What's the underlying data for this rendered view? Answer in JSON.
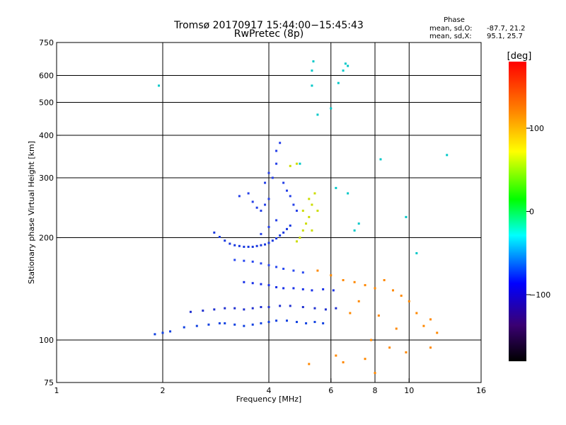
{
  "chart_data": {
    "type": "scatter",
    "title": "Tromsø 20170917 15:44:00−15:45:43",
    "subtitle": "RwPretec (8p)",
    "xlabel": "Frequency [MHz]",
    "ylabel": "Stationary phase Virtual Height [km]",
    "xscale": "log",
    "yscale": "log",
    "xlim": [
      1,
      16
    ],
    "ylim": [
      75,
      750
    ],
    "xticks": [
      1,
      2,
      4,
      6,
      8,
      10,
      16
    ],
    "xtick_labels": [
      "1",
      "2",
      "4",
      "6",
      "8",
      "10",
      "16"
    ],
    "yticks": [
      75,
      100,
      200,
      300,
      400,
      500,
      600,
      750
    ],
    "ytick_labels": [
      "75",
      "100",
      "200",
      "300",
      "400",
      "500",
      "600",
      "750"
    ],
    "grid": true,
    "phase_stats": {
      "title": "Phase",
      "o_label": "mean, sd,O:",
      "o_values": "-87.7, 21.2",
      "x_label": "mean, sd,X:",
      "x_values": "95.1, 25.7"
    },
    "colorbar": {
      "label": "[deg]",
      "range": [
        -180,
        180
      ],
      "ticks": [
        100,
        0,
        -100
      ],
      "tick_labels": [
        "100",
        "0",
        "−100"
      ],
      "colormap": [
        "#000000",
        "#3a0072",
        "#0000ff",
        "#00ffff",
        "#00ff00",
        "#ffff00",
        "#ff8000",
        "#ff0000"
      ]
    },
    "series": [
      {
        "trace": "blue low band",
        "color": "#1040e0",
        "points": [
          [
            1.9,
            104
          ],
          [
            2.0,
            105
          ],
          [
            2.1,
            106
          ],
          [
            2.3,
            109
          ],
          [
            2.5,
            110
          ],
          [
            2.7,
            111
          ],
          [
            2.9,
            112
          ],
          [
            3.0,
            112
          ],
          [
            3.2,
            111
          ],
          [
            3.4,
            110
          ],
          [
            3.6,
            111
          ],
          [
            3.8,
            112
          ],
          [
            4.0,
            113
          ],
          [
            4.2,
            114
          ],
          [
            4.5,
            114
          ],
          [
            4.8,
            113
          ],
          [
            5.1,
            112
          ],
          [
            5.4,
            113
          ],
          [
            5.7,
            112
          ]
        ]
      },
      {
        "trace": "blue middle band",
        "color": "#2030d0",
        "points": [
          [
            2.4,
            121
          ],
          [
            2.6,
            122
          ],
          [
            2.8,
            123
          ],
          [
            3.0,
            124
          ],
          [
            3.2,
            124
          ],
          [
            3.4,
            123
          ],
          [
            3.6,
            124
          ],
          [
            3.8,
            125
          ],
          [
            4.0,
            125
          ],
          [
            4.3,
            126
          ],
          [
            4.6,
            126
          ],
          [
            5.0,
            125
          ],
          [
            5.4,
            124
          ],
          [
            5.8,
            123
          ],
          [
            6.2,
            124
          ]
        ]
      },
      {
        "trace": "blue 150 km band",
        "color": "#1830e8",
        "points": [
          [
            3.4,
            148
          ],
          [
            3.6,
            147
          ],
          [
            3.8,
            146
          ],
          [
            4.0,
            145
          ],
          [
            4.2,
            143
          ],
          [
            4.4,
            142
          ],
          [
            4.7,
            142
          ],
          [
            5.0,
            141
          ],
          [
            5.3,
            140
          ],
          [
            5.7,
            141
          ],
          [
            6.1,
            140
          ]
        ]
      },
      {
        "trace": "blue 170 km band",
        "color": "#2848f0",
        "points": [
          [
            3.2,
            172
          ],
          [
            3.4,
            171
          ],
          [
            3.6,
            170
          ],
          [
            3.8,
            168
          ],
          [
            4.0,
            166
          ],
          [
            4.2,
            164
          ],
          [
            4.4,
            162
          ],
          [
            4.7,
            160
          ],
          [
            5.0,
            158
          ]
        ]
      },
      {
        "trace": "blue F cusp",
        "color": "#1838e0",
        "points": [
          [
            2.8,
            207
          ],
          [
            2.9,
            201
          ],
          [
            3.0,
            196
          ],
          [
            3.1,
            192
          ],
          [
            3.2,
            190
          ],
          [
            3.3,
            189
          ],
          [
            3.4,
            188
          ],
          [
            3.5,
            188
          ],
          [
            3.6,
            188
          ],
          [
            3.7,
            189
          ],
          [
            3.8,
            190
          ],
          [
            3.9,
            191
          ],
          [
            4.0,
            193
          ],
          [
            4.1,
            196
          ],
          [
            4.2,
            199
          ],
          [
            4.3,
            203
          ],
          [
            4.4,
            207
          ],
          [
            4.5,
            212
          ],
          [
            4.6,
            217
          ]
        ]
      },
      {
        "trace": "blue upper cluster",
        "color": "#2540e8",
        "points": [
          [
            3.3,
            265
          ],
          [
            3.5,
            270
          ],
          [
            3.6,
            255
          ],
          [
            3.7,
            245
          ],
          [
            3.8,
            240
          ],
          [
            3.9,
            250
          ],
          [
            4.0,
            260
          ],
          [
            3.9,
            290
          ],
          [
            4.0,
            310
          ],
          [
            4.1,
            300
          ],
          [
            4.2,
            330
          ],
          [
            4.2,
            360
          ],
          [
            4.3,
            380
          ],
          [
            4.4,
            290
          ],
          [
            4.5,
            275
          ],
          [
            4.6,
            265
          ],
          [
            4.7,
            250
          ],
          [
            4.8,
            240
          ],
          [
            4.2,
            225
          ],
          [
            4.0,
            215
          ],
          [
            3.8,
            205
          ]
        ]
      },
      {
        "trace": "yellow-green O2 trace",
        "color": "#ccdd00",
        "points": [
          [
            4.8,
            195
          ],
          [
            4.9,
            200
          ],
          [
            5.0,
            210
          ],
          [
            5.1,
            220
          ],
          [
            5.2,
            230
          ],
          [
            5.3,
            250
          ],
          [
            5.4,
            270
          ],
          [
            5.2,
            260
          ],
          [
            5.0,
            240
          ],
          [
            4.6,
            325
          ],
          [
            4.8,
            330
          ],
          [
            5.5,
            240
          ],
          [
            5.3,
            210
          ]
        ]
      },
      {
        "trace": "scattered mixed echoes",
        "color": "#ff8800",
        "points": [
          [
            5.5,
            160
          ],
          [
            6.0,
            155
          ],
          [
            6.5,
            150
          ],
          [
            7.0,
            148
          ],
          [
            7.5,
            145
          ],
          [
            8.0,
            142
          ],
          [
            8.5,
            150
          ],
          [
            9.0,
            140
          ],
          [
            9.5,
            135
          ],
          [
            10.0,
            130
          ],
          [
            10.5,
            120
          ],
          [
            11.0,
            110
          ],
          [
            11.5,
            115
          ],
          [
            12.0,
            105
          ],
          [
            7.2,
            130
          ],
          [
            8.2,
            118
          ],
          [
            9.2,
            108
          ],
          [
            6.8,
            120
          ],
          [
            7.8,
            100
          ],
          [
            8.8,
            95
          ],
          [
            6.2,
            90
          ],
          [
            7.5,
            88
          ],
          [
            9.8,
            92
          ],
          [
            11.5,
            95
          ],
          [
            5.2,
            85
          ],
          [
            6.5,
            86
          ],
          [
            8.0,
            80
          ]
        ]
      },
      {
        "trace": "scattered high echoes",
        "color": "#00c8c8",
        "points": [
          [
            1.95,
            560
          ],
          [
            5.3,
            620
          ],
          [
            5.35,
            660
          ],
          [
            5.5,
            460
          ],
          [
            5.3,
            560
          ],
          [
            6.3,
            570
          ],
          [
            6.5,
            620
          ],
          [
            6.6,
            650
          ],
          [
            6.7,
            640
          ],
          [
            6.0,
            480
          ],
          [
            6.2,
            280
          ],
          [
            6.7,
            270
          ],
          [
            7.0,
            210
          ],
          [
            7.2,
            220
          ],
          [
            8.3,
            340
          ],
          [
            9.8,
            230
          ],
          [
            12.8,
            350
          ],
          [
            10.5,
            180
          ],
          [
            4.9,
            330
          ]
        ]
      }
    ]
  }
}
